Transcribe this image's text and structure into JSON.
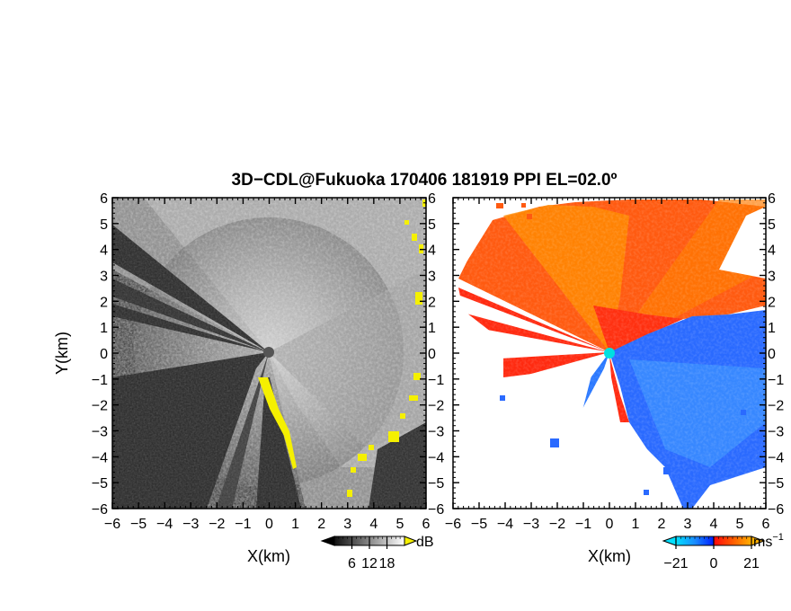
{
  "title": "3D−CDL@Fukuoka 170406 181919 PPI EL=02.0º",
  "chart_data": [
    {
      "type": "heatmap",
      "panel": "left",
      "xlabel": "X(km)",
      "ylabel": "Y(km)",
      "xlim": [
        -6,
        6
      ],
      "ylim": [
        -6,
        6
      ],
      "xticks": [
        "−6",
        "−5",
        "−4",
        "−3",
        "−2",
        "−1",
        "0",
        "1",
        "2",
        "3",
        "4",
        "5",
        "6"
      ],
      "yticks": [
        "−6",
        "−5",
        "−4",
        "−3",
        "−2",
        "−1",
        "0",
        "1",
        "2",
        "3",
        "4",
        "5",
        "6"
      ],
      "colorbar": {
        "unit": "dB",
        "ticks": [
          "6",
          "12",
          "18"
        ],
        "range": [
          0,
          24
        ]
      },
      "colors": {
        "low": "#1a1a1a",
        "high": "#f2f2f2",
        "overflow": "#f5f000",
        "background": "#2e2e2e"
      }
    },
    {
      "type": "heatmap",
      "panel": "right",
      "xlabel": "X(km)",
      "ylabel": "",
      "xlim": [
        -6,
        6
      ],
      "ylim": [
        -6,
        6
      ],
      "xticks": [
        "−6",
        "−5",
        "−4",
        "−3",
        "−2",
        "−1",
        "0",
        "1",
        "2",
        "3",
        "4",
        "5",
        "6"
      ],
      "yticks": [
        "−6",
        "−5",
        "−4",
        "−3",
        "−2",
        "−1",
        "0",
        "1",
        "2",
        "3",
        "4",
        "5",
        "6"
      ],
      "colorbar": {
        "unit": "ms",
        "unit_exponent": "−1",
        "ticks": [
          "−21",
          "0",
          "21"
        ],
        "range": [
          -21,
          21
        ]
      },
      "colors": {
        "neg_strong": "#0a3cff",
        "neg_light": "#2aa4ff",
        "pos_strong": "#ff2a10",
        "pos_light": "#ff8c00",
        "site": "#00e0e0"
      }
    }
  ]
}
